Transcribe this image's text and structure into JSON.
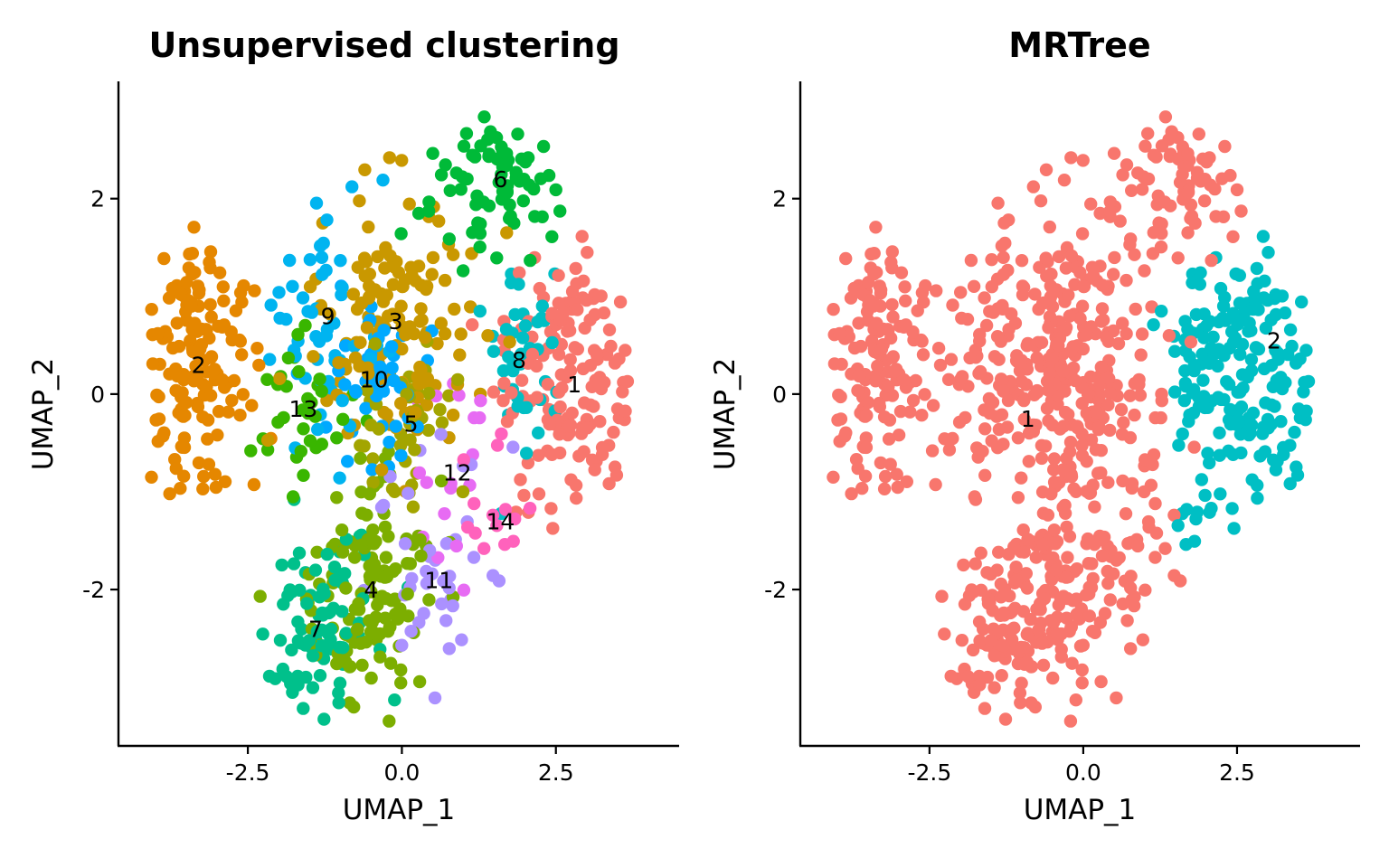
{
  "chart_data": [
    {
      "type": "scatter",
      "title": "Unsupervised clustering",
      "xlabel": "UMAP_1",
      "ylabel": "UMAP_2",
      "xlim": [
        -4.6,
        4.5
      ],
      "ylim": [
        -3.6,
        3.2
      ],
      "xticks": [
        -2.5,
        0.0,
        2.5
      ],
      "xtick_labels": [
        "-2.5",
        "0.0",
        "2.5"
      ],
      "yticks": [
        -2,
        0,
        2
      ],
      "ytick_labels": [
        "-2",
        "0",
        "2"
      ],
      "grid": false,
      "legend": "none",
      "clusters": [
        {
          "label": "1",
          "color": "#F8766D",
          "x": 2.8,
          "y": 0.1,
          "sx": 0.55,
          "sy": 0.75,
          "n": 150
        },
        {
          "label": "2",
          "color": "#E58700",
          "x": -3.3,
          "y": 0.3,
          "sx": 0.45,
          "sy": 0.75,
          "n": 150
        },
        {
          "label": "3",
          "color": "#C99800",
          "x": -0.1,
          "y": 0.75,
          "sx": 0.7,
          "sy": 0.7,
          "n": 140
        },
        {
          "label": "4",
          "color": "#7CAE00",
          "x": -0.5,
          "y": -2.0,
          "sx": 0.55,
          "sy": 0.6,
          "n": 130
        },
        {
          "label": "5",
          "color": "#A3A500",
          "x": 0.15,
          "y": -0.3,
          "sx": 0.45,
          "sy": 0.45,
          "n": 45
        },
        {
          "label": "6",
          "color": "#00BA38",
          "x": 1.6,
          "y": 2.2,
          "sx": 0.55,
          "sy": 0.4,
          "n": 75
        },
        {
          "label": "7",
          "color": "#00C08B",
          "x": -1.4,
          "y": -2.4,
          "sx": 0.55,
          "sy": 0.5,
          "n": 85
        },
        {
          "label": "8",
          "color": "#00BFC4",
          "x": 1.9,
          "y": 0.35,
          "sx": 0.35,
          "sy": 0.45,
          "n": 40
        },
        {
          "label": "9",
          "color": "#00B4F0",
          "x": -1.2,
          "y": 0.8,
          "sx": 0.45,
          "sy": 0.55,
          "n": 55
        },
        {
          "label": "10",
          "color": "#00A9FF",
          "x": -0.45,
          "y": 0.15,
          "sx": 0.4,
          "sy": 0.45,
          "n": 45
        },
        {
          "label": "11",
          "color": "#AB91FF",
          "x": 0.6,
          "y": -1.9,
          "sx": 0.55,
          "sy": 0.7,
          "n": 40
        },
        {
          "label": "12",
          "color": "#E76BF3",
          "x": 0.9,
          "y": -0.8,
          "sx": 0.4,
          "sy": 0.45,
          "n": 18
        },
        {
          "label": "13",
          "color": "#39B600",
          "x": -1.6,
          "y": -0.15,
          "sx": 0.4,
          "sy": 0.45,
          "n": 35
        },
        {
          "label": "14",
          "color": "#FF62BC",
          "x": 1.6,
          "y": -1.3,
          "sx": 0.3,
          "sy": 0.3,
          "n": 14
        }
      ]
    },
    {
      "type": "scatter",
      "title": "MRTree",
      "xlabel": "UMAP_1",
      "ylabel": "UMAP_2",
      "xlim": [
        -4.6,
        4.5
      ],
      "ylim": [
        -3.6,
        3.2
      ],
      "xticks": [
        -2.5,
        0.0,
        2.5
      ],
      "xtick_labels": [
        "-2.5",
        "0.0",
        "2.5"
      ],
      "yticks": [
        -2,
        0,
        2
      ],
      "ytick_labels": [
        "-2",
        "0",
        "2"
      ],
      "grid": false,
      "legend": "none",
      "clusters": [
        {
          "label": "1",
          "color": "#F8766D",
          "x": -0.9,
          "y": -0.25,
          "n": 1040
        },
        {
          "label": "2",
          "color": "#00BFC4",
          "x": 3.1,
          "y": 0.55,
          "n": 220
        }
      ]
    }
  ]
}
